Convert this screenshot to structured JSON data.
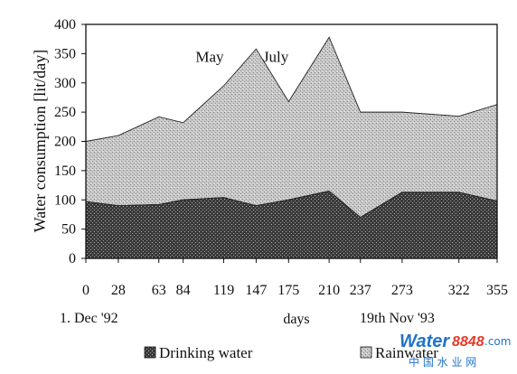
{
  "chart_data": {
    "type": "area",
    "stacked": true,
    "ylabel": "Water consumption  [lit/day]",
    "xlabel": "days",
    "x": [
      0,
      28,
      63,
      84,
      119,
      147,
      175,
      210,
      237,
      273,
      322,
      355
    ],
    "x_tick_labels": [
      "0",
      "28",
      "63",
      "84",
      "119",
      "147",
      "175",
      "210",
      "237",
      "273",
      "322",
      "355"
    ],
    "ylim": [
      0,
      400
    ],
    "y_ticks": [
      0,
      50,
      100,
      150,
      200,
      250,
      300,
      350,
      400
    ],
    "series": [
      {
        "name": "Drinking water",
        "values": [
          97,
          90,
          92,
          100,
          104,
          90,
          100,
          115,
          70,
          113,
          113,
          98
        ]
      },
      {
        "name": "Rainwater",
        "values": [
          103,
          120,
          150,
          132,
          191,
          268,
          168,
          263,
          180,
          137,
          130,
          165
        ]
      }
    ],
    "annotations": [
      {
        "text": "May",
        "x": 119,
        "y": 370
      },
      {
        "text": "July",
        "x": 175,
        "y": 370
      }
    ],
    "date_labels": {
      "start": "1. Dec '92",
      "end": "19th Nov '93"
    },
    "legend_position": "bottom",
    "grid": false
  },
  "watermark": {
    "brand": "Water",
    "number": "8848",
    "suffix": ".com",
    "sub": "中  国  水  业  网"
  }
}
